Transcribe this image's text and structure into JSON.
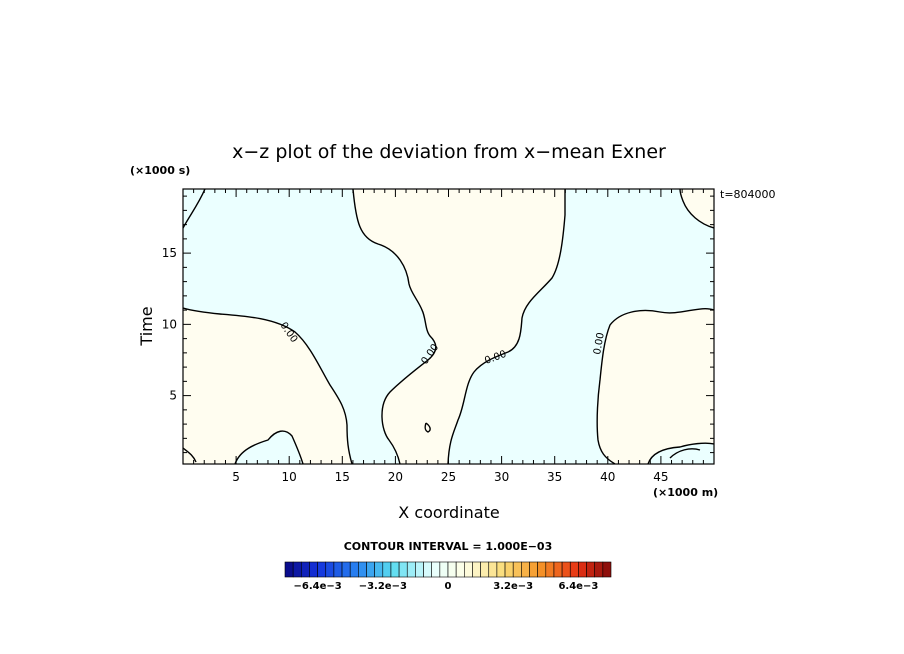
{
  "chart_data": {
    "type": "heatmap",
    "title": "x−z plot of the deviation from x−mean Exner",
    "xlabel": "X coordinate",
    "ylabel": "Time",
    "x_unit": "(×1000 m)",
    "y_unit": "(×1000 s)",
    "timestamp": "t=804000",
    "xlim": [
      0,
      50
    ],
    "ylim": [
      0.2,
      19.5
    ],
    "xticks": [
      5,
      10,
      15,
      20,
      25,
      30,
      35,
      40,
      45
    ],
    "yticks": [
      5,
      10,
      15
    ],
    "contour_interval_text": "CONTOUR INTERVAL = 1.000E−03",
    "contour_label": "0.00",
    "colors": {
      "negative_fill": "#ebffff",
      "positive_fill": "#fffdf0"
    },
    "colorbar": {
      "labels": [
        "−6.4e−3",
        "−3.2e−3",
        "0",
        "3.2e−3",
        "6.4e−3"
      ],
      "label_values": [
        -0.0064,
        -0.0032,
        0,
        0.0032,
        0.0064
      ],
      "min": -0.008,
      "max": 0.008,
      "n_bins": 40
    }
  }
}
